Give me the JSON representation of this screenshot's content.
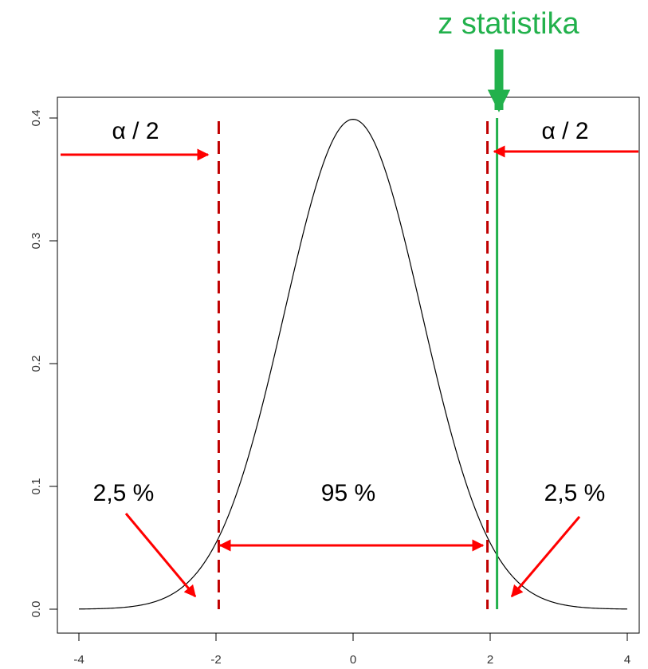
{
  "chart_data": {
    "type": "line",
    "title": "",
    "xlabel": "",
    "ylabel": "",
    "xlim": [
      -4,
      4
    ],
    "ylim": [
      0,
      0.4
    ],
    "x_ticks": [
      -4,
      -2,
      0,
      2,
      4
    ],
    "y_ticks": [
      0.0,
      0.1,
      0.2,
      0.3,
      0.4
    ],
    "x_tick_labels": [
      "-4",
      "-2",
      "0",
      "2",
      "4"
    ],
    "y_tick_labels": [
      "0.0",
      "0.1",
      "0.2",
      "0.3",
      "0.4"
    ],
    "series": [
      {
        "function": "standard normal density",
        "mean": 0,
        "sd": 1,
        "x_range": [
          -4,
          4
        ]
      }
    ],
    "critical_values": [
      -1.96,
      1.96
    ],
    "z_statistic": 2.1,
    "annotations": {
      "z_label": "z statistika",
      "alpha_left": "α / 2",
      "alpha_right": "α / 2",
      "tail_left": "2,5 %",
      "middle": "95 %",
      "tail_right": "2,5 %"
    },
    "colors": {
      "curve": "#000000",
      "critical_lines": "#c00000",
      "z_line": "#22b14c",
      "arrows": "#ff0000",
      "z_label": "#22b14c"
    },
    "grid": false
  }
}
